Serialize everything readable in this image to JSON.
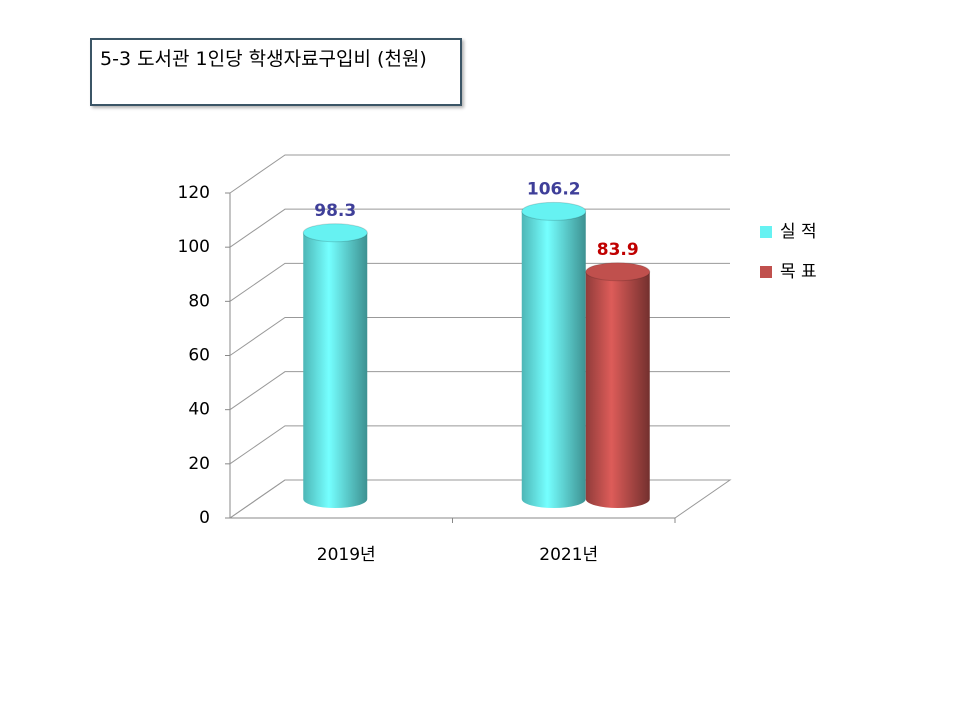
{
  "chart_data": {
    "type": "bar3d",
    "title": "5-3 도서관 1인당 학생자료구입비 (천원)",
    "categories": [
      "2019년",
      "2021년"
    ],
    "series": [
      {
        "name": "실 적",
        "color": "#66f2f2",
        "label_color": "#3f3f99",
        "values": [
          98.3,
          106.2
        ]
      },
      {
        "name": "목 표",
        "color": "#c0504d",
        "label_color": "#c00000",
        "values": [
          null,
          83.9
        ]
      }
    ],
    "ylim": [
      0,
      120
    ],
    "yticks": [
      0,
      20,
      40,
      60,
      80,
      100,
      120
    ],
    "grid": true,
    "legend": "right"
  }
}
